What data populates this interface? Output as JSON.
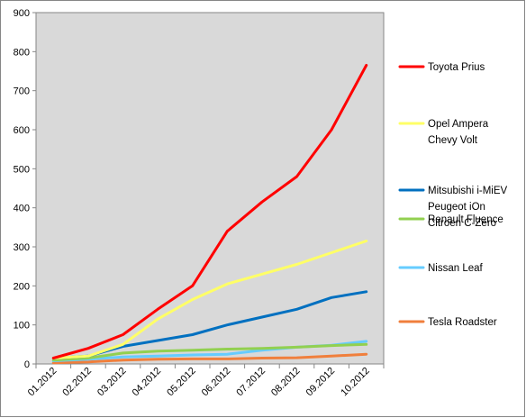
{
  "chart_data": {
    "type": "line",
    "title": "",
    "xlabel": "",
    "ylabel": "",
    "categories": [
      "01.2012",
      "02.2012",
      "03.2012",
      "04.2012",
      "05.2012",
      "06.2012",
      "07.2012",
      "08.2012",
      "09.2012",
      "10.2012"
    ],
    "ylim": [
      0,
      900
    ],
    "yticks": [
      0,
      100,
      200,
      300,
      400,
      500,
      600,
      700,
      800,
      900
    ],
    "grid": false,
    "plot_background": "#d9d9d9",
    "legend_position": "right",
    "series": [
      {
        "legend": [
          "Toyota Prius"
        ],
        "color": "#ff0000",
        "values": [
          15,
          40,
          75,
          140,
          200,
          340,
          415,
          480,
          600,
          765
        ]
      },
      {
        "legend": [
          "Opel Ampera",
          "Chevy Volt"
        ],
        "color": "#ffff66",
        "values": [
          15,
          20,
          50,
          115,
          165,
          205,
          230,
          255,
          285,
          315
        ]
      },
      {
        "legend": [
          "Mitsubishi i-MiEV",
          "Peugeot iOn",
          "Citroen C-Zero"
        ],
        "color": "#0070c0",
        "values": [
          15,
          20,
          45,
          60,
          75,
          100,
          120,
          140,
          170,
          185
        ]
      },
      {
        "legend": [
          "Renault Fluence"
        ],
        "color": "#92d050",
        "values": [
          10,
          15,
          28,
          33,
          35,
          38,
          40,
          43,
          47,
          50
        ]
      },
      {
        "legend": [
          "Nissan Leaf"
        ],
        "color": "#66ccff",
        "values": [
          8,
          12,
          18,
          20,
          23,
          25,
          35,
          43,
          48,
          58
        ]
      },
      {
        "legend": [
          "Tesla Roadster"
        ],
        "color": "#f07f3c",
        "values": [
          3,
          5,
          10,
          12,
          13,
          13,
          15,
          16,
          20,
          25
        ]
      }
    ]
  }
}
